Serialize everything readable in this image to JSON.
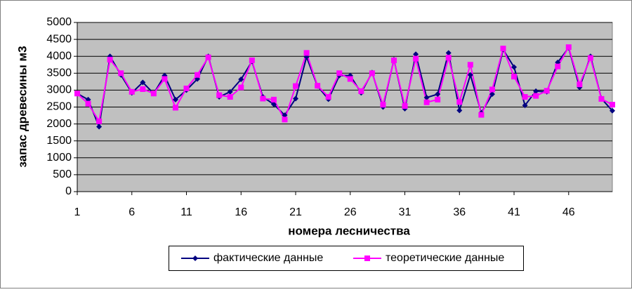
{
  "chart_data": {
    "type": "line",
    "x_label": "номера лесничества",
    "y_label": "запас древесины м3",
    "x": [
      1,
      2,
      3,
      4,
      5,
      6,
      7,
      8,
      9,
      10,
      11,
      12,
      13,
      14,
      15,
      16,
      17,
      18,
      19,
      20,
      21,
      22,
      23,
      24,
      25,
      26,
      27,
      28,
      29,
      30,
      31,
      32,
      33,
      34,
      35,
      36,
      37,
      38,
      39,
      40,
      41,
      42,
      43,
      44,
      45,
      46,
      47,
      48,
      49,
      50
    ],
    "xlim": [
      1,
      50
    ],
    "xticks": [
      1,
      6,
      11,
      16,
      21,
      26,
      31,
      36,
      41,
      46
    ],
    "ylim": [
      0,
      5000
    ],
    "yticks": [
      0,
      500,
      1000,
      1500,
      2000,
      2500,
      3000,
      3500,
      4000,
      4500,
      5000
    ],
    "grid": true,
    "legend": "bottom",
    "series": [
      {
        "name": "фактические данные",
        "color": "#000080",
        "marker": "diamond",
        "values": [
          2900,
          2720,
          1920,
          4000,
          3450,
          2920,
          3230,
          2900,
          3430,
          2720,
          3000,
          3330,
          4000,
          2800,
          2950,
          3320,
          3850,
          2800,
          2580,
          2260,
          2750,
          3980,
          3120,
          2730,
          3430,
          3430,
          2920,
          3520,
          2500,
          3900,
          2450,
          4060,
          2780,
          2880,
          4100,
          2400,
          3450,
          2330,
          2880,
          4200,
          3680,
          2550,
          2970,
          2950,
          3820,
          4250,
          3080,
          4000,
          2750,
          2390
        ]
      },
      {
        "name": "теоретические данные",
        "color": "#ff00ff",
        "marker": "square",
        "values": [
          2900,
          2600,
          2080,
          3900,
          3500,
          2950,
          3030,
          2900,
          3330,
          2480,
          3050,
          3450,
          3970,
          2850,
          2800,
          3080,
          3880,
          2750,
          2720,
          2130,
          3120,
          4100,
          3130,
          2800,
          3500,
          3330,
          2970,
          3500,
          2570,
          3880,
          2530,
          3930,
          2640,
          2720,
          3960,
          2650,
          3750,
          2270,
          3020,
          4230,
          3400,
          2800,
          2830,
          2980,
          3700,
          4270,
          3170,
          3950,
          2740,
          2570
        ]
      }
    ]
  }
}
